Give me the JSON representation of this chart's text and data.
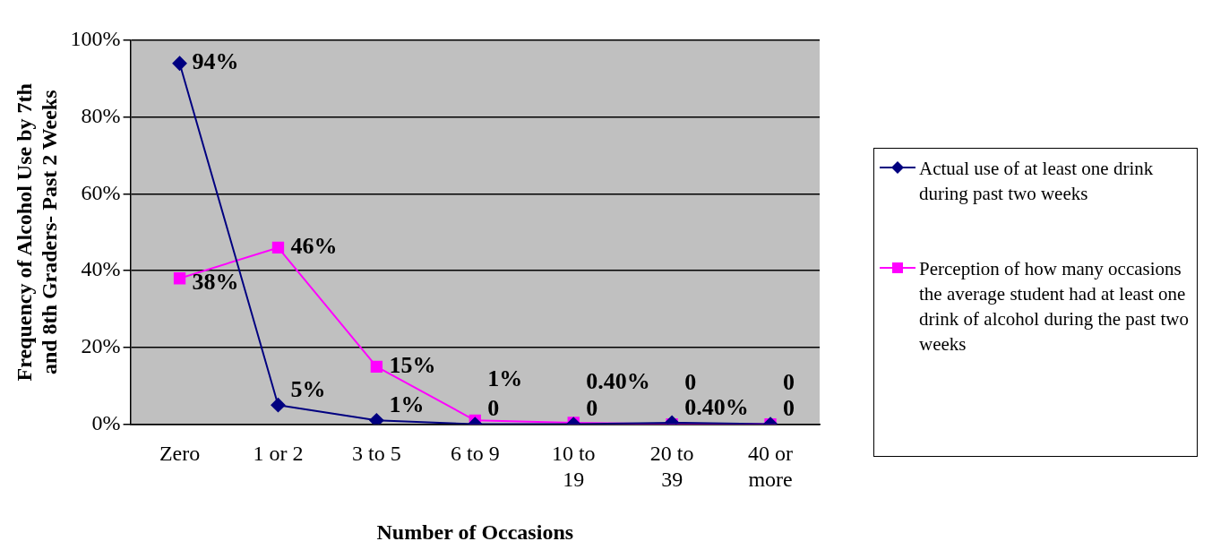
{
  "chart_data": {
    "type": "line",
    "xlabel": "Number of Occasions",
    "ylabel": "Frequency of Alcohol Use by 7th and 8th Graders- Past 2 Weeks",
    "categories": [
      "Zero",
      "1 or 2",
      "3 to 5",
      "6 to 9",
      "10 to 19",
      "20 to 39",
      "40 or more"
    ],
    "series": [
      {
        "name": "Actual use of at least one drink during past two weeks",
        "color": "#000080",
        "marker": "diamond",
        "values": [
          94,
          5,
          1,
          0,
          0,
          0.4,
          0
        ],
        "value_labels": [
          "94%",
          "5%",
          "1%",
          "0",
          "0",
          "0.40%",
          "0"
        ]
      },
      {
        "name": "Perception of how many occasions the average student had at least one drink of alcohol during the past two weeks",
        "color": "#ff00ff",
        "marker": "square",
        "values": [
          38,
          46,
          15,
          1,
          0.4,
          0,
          0
        ],
        "value_labels": [
          "38%",
          "46%",
          "15%",
          "1%",
          "0.40%",
          "0",
          "0"
        ]
      }
    ],
    "ylim": [
      0,
      100
    ],
    "yticks": [
      {
        "value": 0,
        "label": "0%"
      },
      {
        "value": 20,
        "label": "20%"
      },
      {
        "value": 40,
        "label": "40%"
      },
      {
        "value": 60,
        "label": "60%"
      },
      {
        "value": 80,
        "label": "80%"
      },
      {
        "value": 100,
        "label": "100%"
      }
    ],
    "grid": "y",
    "legend": "right",
    "line_style": "solid"
  }
}
